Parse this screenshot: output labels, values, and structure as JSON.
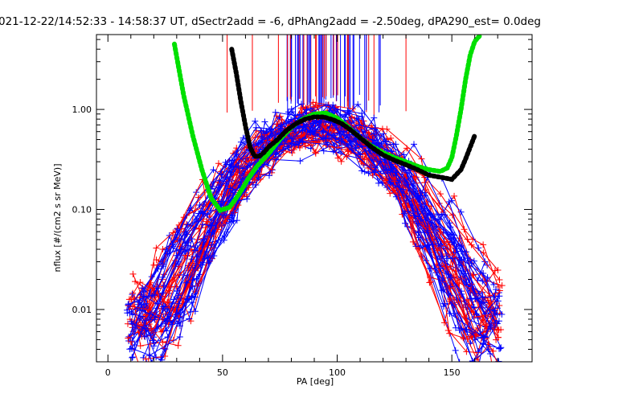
{
  "chart_data": {
    "type": "line",
    "title": "021-12-22/14:52:33 - 14:58:37 UT, dSectr2add = -6, dPhAng2add = -2.50deg, dPA290_est=    0.0deg",
    "xlabel": "PA [deg]",
    "ylabel": "nflux [#/(cm2 s sr MeV)]",
    "xlim": [
      -5,
      185
    ],
    "ylim": [
      0.003,
      5.6
    ],
    "yscale": "log",
    "x_ticks": [
      0,
      50,
      100,
      150
    ],
    "x_tick_labels": [
      "0",
      "50",
      "100",
      "150"
    ],
    "y_ticks": [
      0.01,
      0.1,
      1.0
    ],
    "y_tick_labels": [
      "0.01",
      "0.10",
      "1.00"
    ],
    "grid": false,
    "series": [
      {
        "color": "#00e000",
        "style": "thick-dotted",
        "x": [
          29,
          33,
          37,
          41,
          45,
          49,
          53,
          57,
          61,
          65,
          70,
          75,
          80,
          85,
          90,
          95,
          100,
          105,
          110,
          115,
          120,
          125,
          130,
          135,
          140,
          145,
          148,
          150,
          152,
          154,
          156,
          158,
          160,
          162
        ],
        "y": [
          4.5,
          1.4,
          0.55,
          0.25,
          0.13,
          0.098,
          0.105,
          0.14,
          0.2,
          0.27,
          0.36,
          0.5,
          0.66,
          0.8,
          0.9,
          0.92,
          0.82,
          0.66,
          0.52,
          0.43,
          0.37,
          0.33,
          0.3,
          0.27,
          0.25,
          0.24,
          0.26,
          0.33,
          0.55,
          1.0,
          2.0,
          3.5,
          4.8,
          5.4
        ]
      },
      {
        "color": "#000000",
        "style": "thick-dotted",
        "x": [
          54,
          56,
          58,
          60,
          62,
          64,
          66,
          68,
          70,
          74,
          78,
          82,
          86,
          90,
          94,
          98,
          102,
          106,
          110,
          115,
          120,
          125,
          130,
          135,
          140,
          145,
          150,
          154,
          156,
          158,
          160
        ],
        "y": [
          4.0,
          2.3,
          1.2,
          0.68,
          0.42,
          0.34,
          0.34,
          0.37,
          0.42,
          0.5,
          0.62,
          0.72,
          0.8,
          0.84,
          0.84,
          0.79,
          0.72,
          0.62,
          0.52,
          0.42,
          0.35,
          0.31,
          0.28,
          0.25,
          0.22,
          0.21,
          0.2,
          0.25,
          0.32,
          0.42,
          0.55
        ]
      }
    ],
    "red_series_count": 28,
    "blue_series_count": 36,
    "series_colors": {
      "red": "#ff0000",
      "blue": "#0000ff"
    }
  }
}
